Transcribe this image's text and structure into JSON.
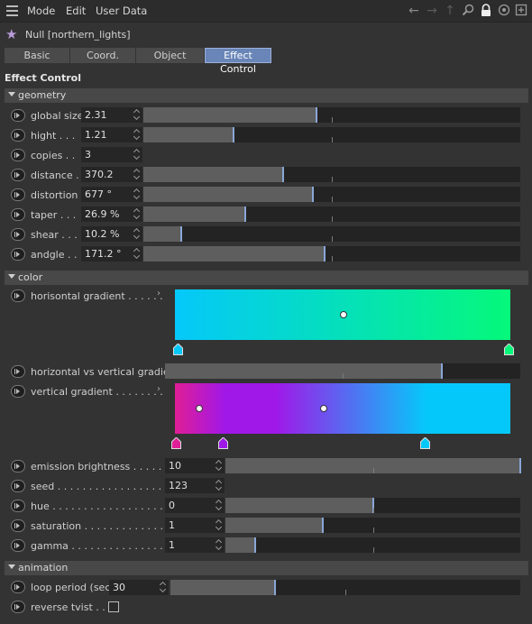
{
  "menu": {
    "mode": "Mode",
    "edit": "Edit",
    "user_data": "User Data"
  },
  "object": {
    "name": "Null [northern_lights]"
  },
  "tabs": [
    "Basic",
    "Coord.",
    "Object",
    "Effect Control"
  ],
  "active_tab": "Effect Control",
  "section_title": "Effect Control",
  "geometry": {
    "title": "geometry",
    "rows": [
      {
        "label": "global size",
        "value": "2.31",
        "level": 0.46
      },
      {
        "label": "hight . . .",
        "value": "1.21",
        "level": 0.24
      },
      {
        "label": "copies . .",
        "value": "3"
      },
      {
        "label": "distance .",
        "value": "370.2",
        "level": 0.37
      },
      {
        "label": "distortion",
        "value": "677 °",
        "level": 0.45
      },
      {
        "label": "taper . . .",
        "value": "26.9 %",
        "level": 0.27
      },
      {
        "label": "shear . . .",
        "value": "10.2 %",
        "level": 0.1
      },
      {
        "label": "andgle . .",
        "value": "171.2 °",
        "level": 0.48
      }
    ]
  },
  "color": {
    "title": "color",
    "horizontal_gradient": {
      "label": "horisontal gradient . . . . . .",
      "colors": [
        "#05c8fa",
        "#05f87a"
      ]
    },
    "h_vs_v": {
      "label": "horizontal vs vertical gradient",
      "level": 0.78
    },
    "vertical_gradient": {
      "label": "vertical gradient . . . . . . . .",
      "colors": [
        "#e01e96",
        "#a018e8",
        "#05c8fa"
      ]
    },
    "rows": [
      {
        "label": "emission brightness . . . . . .",
        "value": "10",
        "level": 1.0
      },
      {
        "label": "seed . . . . . . . . . . . . . . . . . .",
        "value": "123"
      },
      {
        "label": "hue . . . . . . . . . . . . . . . . . . .",
        "value": "0",
        "level": 0.5
      },
      {
        "label": "saturation . . . . . . . . . . . . .",
        "value": "1",
        "level": 0.33
      },
      {
        "label": "gamma . . . . . . . . . . . . . . . .",
        "value": "1",
        "level": 0.1
      }
    ]
  },
  "animation": {
    "title": "animation",
    "loop_period": {
      "label": "loop period (sec)",
      "value": "30",
      "level": 0.3
    },
    "reverse": {
      "label": "reverse tvist . . .",
      "checked": false
    }
  },
  "accent": "#8aa6d6"
}
